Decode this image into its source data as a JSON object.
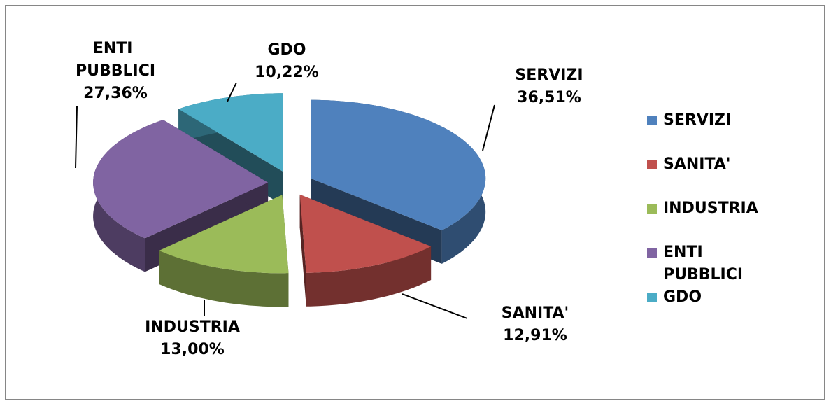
{
  "chart_data": {
    "type": "pie",
    "three_d": true,
    "exploded": true,
    "categories": [
      "SERVIZI",
      "SANITA'",
      "INDUSTRIA",
      "ENTI PUBBLICI",
      "GDO"
    ],
    "values": [
      36.51,
      12.91,
      13.0,
      27.36,
      10.22
    ],
    "value_labels": [
      "36,51%",
      "12,91%",
      "13,00%",
      "27,36%",
      "10,22%"
    ],
    "colors": [
      "#4f81bd",
      "#c0504d",
      "#9bbb59",
      "#8064a2",
      "#4bacc6"
    ],
    "legend": "right"
  }
}
